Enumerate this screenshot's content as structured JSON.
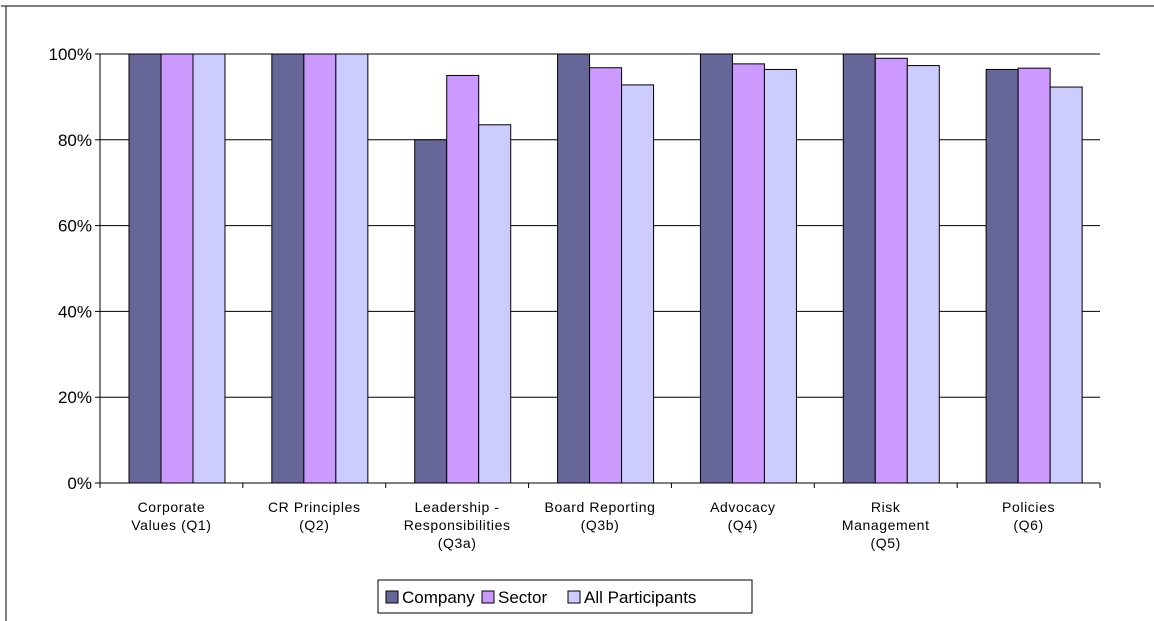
{
  "chart_data": {
    "type": "bar",
    "categories": [
      [
        "Corporate",
        "Values (Q1)"
      ],
      [
        "CR Principles",
        "(Q2)"
      ],
      [
        "Leadership -",
        "Responsibilities",
        "(Q3a)"
      ],
      [
        "Board Reporting",
        "(Q3b)"
      ],
      [
        "Advocacy",
        "(Q4)"
      ],
      [
        "Risk",
        "Management",
        "(Q5)"
      ],
      [
        "Policies",
        "(Q6)"
      ]
    ],
    "series": [
      {
        "name": "Company",
        "color": "#666699",
        "values": [
          100,
          100,
          80,
          100,
          100,
          100,
          96.4
        ]
      },
      {
        "name": "Sector",
        "color": "#cc99ff",
        "values": [
          100,
          100,
          95,
          96.8,
          97.7,
          99,
          96.7
        ]
      },
      {
        "name": "All Participants",
        "color": "#ccccff",
        "values": [
          100,
          100,
          83.5,
          92.8,
          96.4,
          97.3,
          92.3
        ]
      }
    ],
    "yticks": [
      "0%",
      "20%",
      "40%",
      "60%",
      "80%",
      "100%"
    ],
    "ylim": [
      0,
      100
    ],
    "grid": true,
    "legend_position": "bottom"
  }
}
